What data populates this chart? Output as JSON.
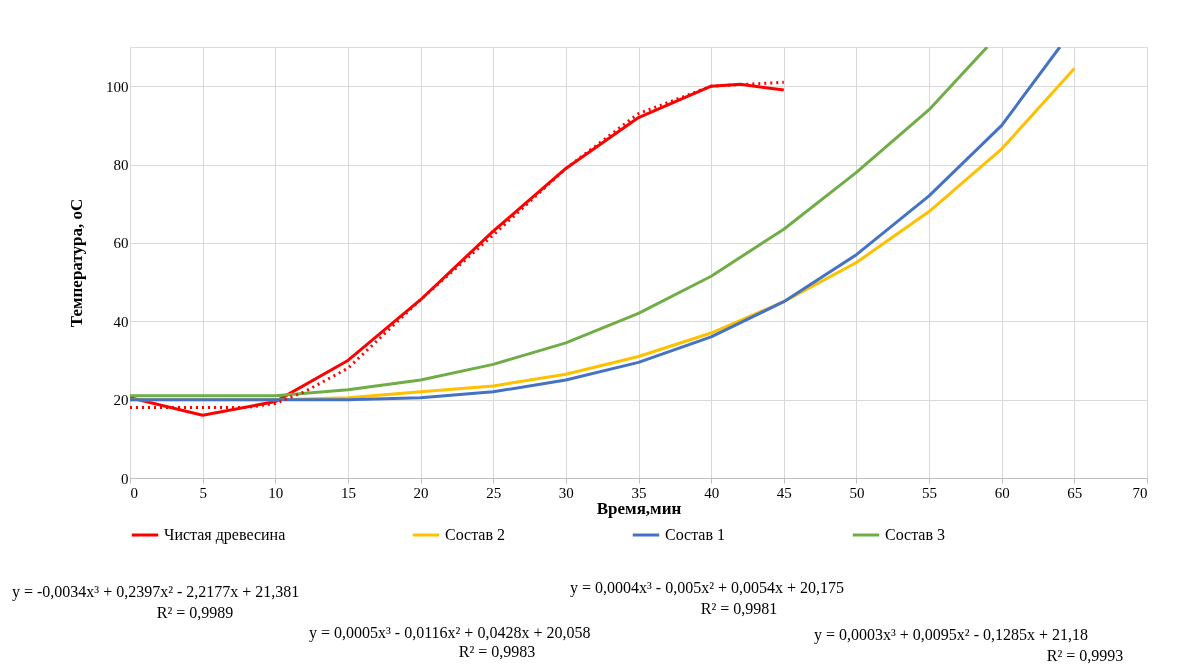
{
  "chart_data": {
    "type": "line",
    "xlabel": "Время,мин",
    "ylabel": "Температура,  oC",
    "xlim": [
      0,
      70
    ],
    "xticks": [
      0,
      5,
      10,
      15,
      20,
      25,
      30,
      35,
      40,
      45,
      50,
      55,
      60,
      65,
      70
    ],
    "ylim": [
      0,
      110
    ],
    "yticks": [
      0,
      20,
      40,
      60,
      80,
      100
    ],
    "grid": true,
    "legend": "bottom",
    "marker": "none",
    "series": [
      {
        "name": "Чистая древесина",
        "color": "#ff0000",
        "line_style": "solid",
        "x": [
          0,
          5,
          10,
          15,
          20,
          25,
          30,
          35,
          40,
          42,
          45
        ],
        "values": [
          20.5,
          16,
          19.5,
          30,
          45.5,
          63,
          79,
          92,
          100,
          100.5,
          99
        ]
      },
      {
        "name": "Состав 2",
        "color": "#ffc000",
        "line_style": "solid",
        "x": [
          0,
          10,
          15,
          20,
          25,
          30,
          35,
          40,
          45,
          50,
          55,
          60,
          65
        ],
        "values": [
          20,
          20,
          20.5,
          22,
          23.5,
          26.5,
          31,
          37,
          45,
          55,
          68,
          84,
          104.5
        ]
      },
      {
        "name": "Состав 1",
        "color": "#4472c4",
        "line_style": "solid",
        "x": [
          0,
          10,
          15,
          20,
          25,
          30,
          35,
          40,
          45,
          50,
          55,
          60,
          64
        ],
        "values": [
          20,
          20,
          20,
          20.5,
          22,
          25,
          29.5,
          36,
          45,
          57,
          72,
          90,
          110
        ]
      },
      {
        "name": "Состав 3",
        "color": "#70ad47",
        "line_style": "solid",
        "x": [
          0,
          5,
          10,
          15,
          20,
          25,
          30,
          35,
          40,
          45,
          50,
          55,
          59
        ],
        "values": [
          21,
          21,
          21,
          22.5,
          25,
          29,
          34.5,
          42,
          51.5,
          63.5,
          78,
          94,
          110
        ]
      },
      {
        "color": "#ff0000",
        "line_style": "dotted",
        "x": [
          0,
          5,
          8,
          10,
          12,
          15,
          17,
          20,
          25,
          30,
          35,
          40,
          45
        ],
        "values": [
          18,
          18,
          18,
          19,
          22,
          28,
          35,
          45.5,
          62,
          79,
          93,
          100,
          101
        ]
      }
    ],
    "annotations": [
      "y = -0,0034x³ + 0,2397x² - 2,2177x + 21,381",
      "R² = 0,9989",
      "y = 0,0005x³ - 0,0116x² + 0,0428x + 20,058",
      "R² = 0,9983",
      "y = 0,0004x³ - 0,005x² + 0,0054x + 20,175",
      "R² = 0,9981",
      "y = 0,0003x³ + 0,0095x² - 0,1285x + 21,18",
      "R² = 0,9993"
    ]
  }
}
